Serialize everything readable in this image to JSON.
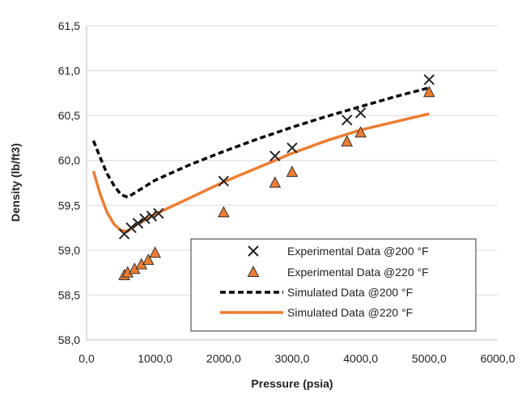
{
  "chart_data": {
    "type": "scatter",
    "xlabel": "Pressure (psia)",
    "ylabel": "Density (lb/ft3)",
    "xlim": [
      0,
      6000
    ],
    "ylim": [
      58.0,
      61.5
    ],
    "grid": "horizontal",
    "legend_position": "bottom-right",
    "x_ticks": [
      "0,0",
      "1000,0",
      "2000,0",
      "3000,0",
      "4000,0",
      "5000,0",
      "6000,0"
    ],
    "y_ticks": [
      "58,0",
      "58,5",
      "59,0",
      "59,5",
      "60,0",
      "60,5",
      "61,0",
      "61,5"
    ],
    "series": [
      {
        "name": "Experimental Data @200 °F",
        "kind": "marker-x",
        "color": "#222222",
        "x": [
          550,
          650,
          750,
          850,
          950,
          1050,
          2000,
          2750,
          3000,
          3800,
          4000,
          5000
        ],
        "y": [
          59.18,
          59.25,
          59.3,
          59.35,
          59.38,
          59.41,
          59.77,
          60.05,
          60.14,
          60.45,
          60.53,
          60.9
        ]
      },
      {
        "name": "Experimental Data @220 °F",
        "kind": "marker-triangle",
        "color": "#ED7D31",
        "x": [
          550,
          600,
          700,
          800,
          900,
          1000,
          2000,
          2750,
          3000,
          3800,
          4000,
          5000
        ],
        "y": [
          58.72,
          58.75,
          58.79,
          58.84,
          58.89,
          58.97,
          59.42,
          59.75,
          59.87,
          60.21,
          60.31,
          60.76
        ]
      },
      {
        "name": "Simulated Data @200 °F",
        "kind": "line-dashed",
        "color": "#000000",
        "x": [
          100,
          200,
          300,
          400,
          500,
          600,
          1000,
          1500,
          2000,
          2500,
          3000,
          3500,
          4000,
          4500,
          5000
        ],
        "y": [
          60.22,
          60.03,
          59.85,
          59.72,
          59.62,
          59.59,
          59.78,
          59.95,
          60.1,
          60.24,
          60.37,
          60.49,
          60.6,
          60.71,
          60.81
        ]
      },
      {
        "name": "Simulated Data @220 °F",
        "kind": "line-solid",
        "color": "#ED7D31",
        "x": [
          100,
          150,
          200,
          300,
          400,
          500,
          600,
          700,
          1000,
          1500,
          2000,
          2500,
          3000,
          3500,
          4000,
          4500,
          5000
        ],
        "y": [
          59.88,
          59.75,
          59.62,
          59.42,
          59.29,
          59.22,
          59.21,
          59.27,
          59.4,
          59.58,
          59.76,
          59.92,
          60.08,
          60.22,
          60.34,
          60.43,
          60.52
        ]
      }
    ]
  }
}
